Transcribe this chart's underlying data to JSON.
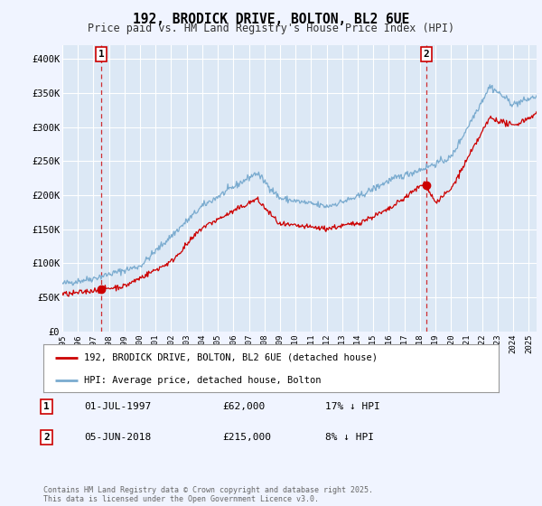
{
  "title": "192, BRODICK DRIVE, BOLTON, BL2 6UE",
  "subtitle": "Price paid vs. HM Land Registry's House Price Index (HPI)",
  "background_color": "#f0f4ff",
  "plot_bg_color": "#dce8f5",
  "line_color_red": "#cc0000",
  "line_color_blue": "#7aabcf",
  "ylim": [
    0,
    420000
  ],
  "xlim_start": 1995.0,
  "xlim_end": 2025.5,
  "yticks": [
    0,
    50000,
    100000,
    150000,
    200000,
    250000,
    300000,
    350000,
    400000
  ],
  "ytick_labels": [
    "£0",
    "£50K",
    "£100K",
    "£150K",
    "£200K",
    "£250K",
    "£300K",
    "£350K",
    "£400K"
  ],
  "sale1_x": 1997.5,
  "sale1_y": 62000,
  "sale1_label": "1",
  "sale1_date": "01-JUL-1997",
  "sale1_price": "£62,000",
  "sale1_hpi": "17% ↓ HPI",
  "sale2_x": 2018.42,
  "sale2_y": 215000,
  "sale2_label": "2",
  "sale2_date": "05-JUN-2018",
  "sale2_price": "£215,000",
  "sale2_hpi": "8% ↓ HPI",
  "legend_line1": "192, BRODICK DRIVE, BOLTON, BL2 6UE (detached house)",
  "legend_line2": "HPI: Average price, detached house, Bolton",
  "copyright": "Contains HM Land Registry data © Crown copyright and database right 2025.\nThis data is licensed under the Open Government Licence v3.0."
}
